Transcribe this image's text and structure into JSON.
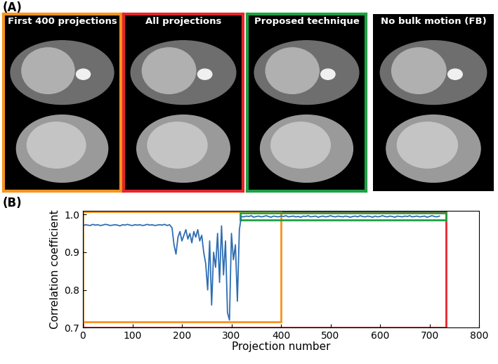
{
  "panel_a": {
    "label": "(A)",
    "images": [
      {
        "title": "First 400 projections",
        "frame_color": "#f7941d"
      },
      {
        "title": "All projections",
        "frame_color": "#e3262b"
      },
      {
        "title": "Proposed technique",
        "frame_color": "#1fa045"
      },
      {
        "title": "No bulk motion (FB)"
      }
    ]
  },
  "chart_data": {
    "type": "line",
    "title": "(B)",
    "x_label": "Projection number",
    "y_label": "Correlation coefficient",
    "xlim": [
      0,
      800
    ],
    "xticks": [
      0,
      100,
      200,
      300,
      400,
      500,
      600,
      700,
      800
    ],
    "ylim": [
      0.7,
      1.01
    ],
    "yticks": [
      0.7,
      0.8,
      0.9,
      {
        "value": 1.0,
        "label": "1.0"
      }
    ],
    "color": "#2e6db4",
    "x": [
      0,
      5,
      10,
      15,
      20,
      25,
      30,
      35,
      40,
      45,
      50,
      55,
      60,
      65,
      70,
      75,
      80,
      85,
      90,
      95,
      100,
      105,
      110,
      115,
      120,
      125,
      130,
      135,
      140,
      145,
      150,
      155,
      160,
      165,
      170,
      175,
      180,
      184,
      188,
      192,
      196,
      200,
      204,
      208,
      212,
      216,
      220,
      224,
      228,
      232,
      236,
      240,
      244,
      248,
      252,
      256,
      260,
      264,
      268,
      272,
      276,
      280,
      284,
      288,
      292,
      296,
      300,
      304,
      308,
      312,
      316,
      320,
      325,
      330,
      335,
      340,
      345,
      350,
      355,
      360,
      365,
      370,
      375,
      380,
      385,
      390,
      395,
      400,
      405,
      410,
      415,
      420,
      425,
      430,
      435,
      440,
      445,
      450,
      455,
      460,
      465,
      470,
      475,
      480,
      485,
      490,
      495,
      500,
      505,
      510,
      515,
      520,
      525,
      530,
      535,
      540,
      545,
      550,
      555,
      560,
      565,
      570,
      575,
      580,
      585,
      590,
      595,
      600,
      605,
      610,
      615,
      620,
      625,
      630,
      635,
      640,
      645,
      650,
      655,
      660,
      665,
      670,
      675,
      680,
      685,
      690,
      695,
      700,
      705,
      710,
      715,
      720
    ],
    "values": [
      0.97,
      0.973,
      0.972,
      0.971,
      0.974,
      0.972,
      0.973,
      0.971,
      0.972,
      0.974,
      0.973,
      0.971,
      0.972,
      0.973,
      0.972,
      0.97,
      0.973,
      0.972,
      0.974,
      0.972,
      0.971,
      0.973,
      0.972,
      0.973,
      0.971,
      0.972,
      0.974,
      0.972,
      0.973,
      0.971,
      0.972,
      0.973,
      0.972,
      0.974,
      0.971,
      0.973,
      0.965,
      0.92,
      0.895,
      0.94,
      0.955,
      0.93,
      0.945,
      0.96,
      0.935,
      0.95,
      0.925,
      0.955,
      0.94,
      0.96,
      0.93,
      0.945,
      0.9,
      0.87,
      0.8,
      0.93,
      0.76,
      0.9,
      0.86,
      0.95,
      0.82,
      0.97,
      0.84,
      0.93,
      0.74,
      0.72,
      0.95,
      0.88,
      0.92,
      0.77,
      0.96,
      0.995,
      0.994,
      0.996,
      0.995,
      0.997,
      0.993,
      0.995,
      0.996,
      0.994,
      0.995,
      0.997,
      0.995,
      0.993,
      0.996,
      0.995,
      0.994,
      0.996,
      0.995,
      0.997,
      0.994,
      0.995,
      0.996,
      0.994,
      0.995,
      0.993,
      0.996,
      0.995,
      0.997,
      0.994,
      0.995,
      0.996,
      0.993,
      0.995,
      0.996,
      0.994,
      0.995,
      0.997,
      0.995,
      0.994,
      0.996,
      0.995,
      0.994,
      0.996,
      0.995,
      0.993,
      0.995,
      0.996,
      0.994,
      0.997,
      0.995,
      0.994,
      0.996,
      0.995,
      0.993,
      0.996,
      0.994,
      0.995,
      0.997,
      0.995,
      0.994,
      0.996,
      0.995,
      0.993,
      0.996,
      0.995,
      0.994,
      0.996,
      0.995,
      0.997,
      0.994,
      0.995,
      0.996,
      0.994,
      0.995,
      0.996,
      0.993,
      0.995,
      0.997,
      0.995,
      0.994,
      0.996
    ],
    "regions": [
      {
        "color": "#e3262b",
        "x": [
          0,
          733
        ],
        "y": [
          0.701,
          1.008
        ]
      },
      {
        "color": "#f7941d",
        "x": [
          0,
          400
        ],
        "y": [
          0.715,
          1.008
        ]
      },
      {
        "color": "#1fa045",
        "x": [
          318,
          733
        ],
        "y": [
          0.986,
          1.004
        ]
      }
    ]
  }
}
